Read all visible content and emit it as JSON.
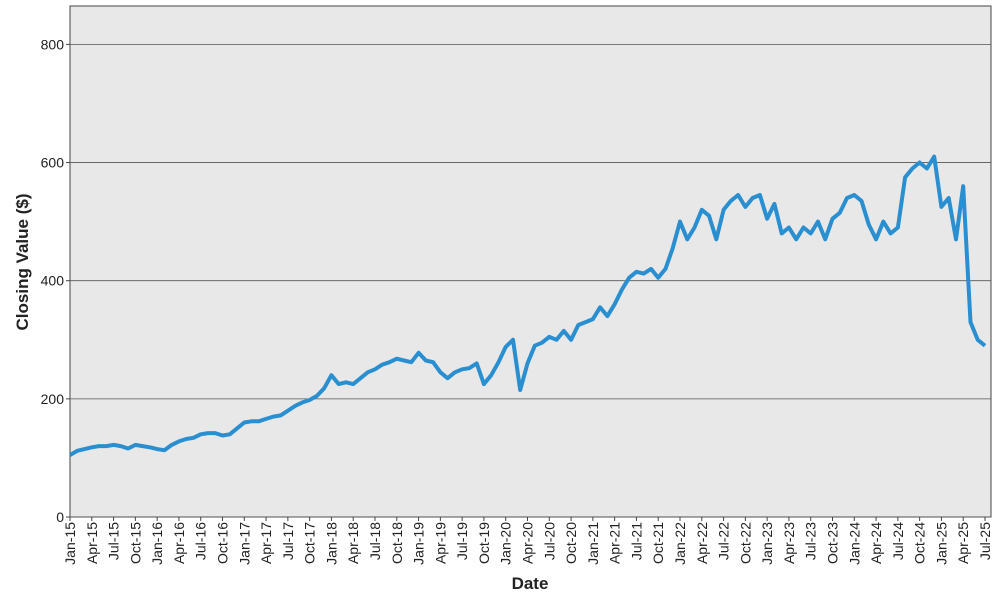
{
  "chart_data": {
    "type": "line",
    "y_label": "Closing Value ($)",
    "x_label": "Date",
    "color": "#2a8fd0",
    "grid": true,
    "ylim": [
      0,
      865
    ],
    "yticks": [
      0,
      200,
      400,
      600,
      800
    ],
    "xlim": [
      "2015-01",
      "2025-07"
    ],
    "xticks": [
      {
        "value": "2015-01",
        "label": "Jan-15"
      },
      {
        "value": "2015-04",
        "label": "Apr-15"
      },
      {
        "value": "2015-07",
        "label": "Jul-15"
      },
      {
        "value": "2015-10",
        "label": "Oct-15"
      },
      {
        "value": "2016-01",
        "label": "Jan-16"
      },
      {
        "value": "2016-04",
        "label": "Apr-16"
      },
      {
        "value": "2016-07",
        "label": "Jul-16"
      },
      {
        "value": "2016-10",
        "label": "Oct-16"
      },
      {
        "value": "2017-01",
        "label": "Jan-17"
      },
      {
        "value": "2017-04",
        "label": "Apr-17"
      },
      {
        "value": "2017-07",
        "label": "Jul-17"
      },
      {
        "value": "2017-10",
        "label": "Oct-17"
      },
      {
        "value": "2018-01",
        "label": "Jan-18"
      },
      {
        "value": "2018-04",
        "label": "Apr-18"
      },
      {
        "value": "2018-07",
        "label": "Jul-18"
      },
      {
        "value": "2018-10",
        "label": "Oct-18"
      },
      {
        "value": "2019-01",
        "label": "Jan-19"
      },
      {
        "value": "2019-04",
        "label": "Apr-19"
      },
      {
        "value": "2019-07",
        "label": "Jul-19"
      },
      {
        "value": "2019-10",
        "label": "Oct-19"
      },
      {
        "value": "2020-01",
        "label": "Jan-20"
      },
      {
        "value": "2020-04",
        "label": "Apr-20"
      },
      {
        "value": "2020-07",
        "label": "Jul-20"
      },
      {
        "value": "2020-10",
        "label": "Oct-20"
      },
      {
        "value": "2021-01",
        "label": "Jan-21"
      },
      {
        "value": "2021-04",
        "label": "Apr-21"
      },
      {
        "value": "2021-07",
        "label": "Jul-21"
      },
      {
        "value": "2021-10",
        "label": "Oct-21"
      },
      {
        "value": "2022-01",
        "label": "Jan-22"
      },
      {
        "value": "2022-04",
        "label": "Apr-22"
      },
      {
        "value": "2022-07",
        "label": "Jul-22"
      },
      {
        "value": "2022-10",
        "label": "Oct-22"
      },
      {
        "value": "2023-01",
        "label": "Jan-23"
      },
      {
        "value": "2023-04",
        "label": "Apr-23"
      },
      {
        "value": "2023-07",
        "label": "Jul-23"
      },
      {
        "value": "2023-10",
        "label": "Oct-23"
      },
      {
        "value": "2024-01",
        "label": "Jan-24"
      },
      {
        "value": "2024-04",
        "label": "Apr-24"
      },
      {
        "value": "2024-07",
        "label": "Jul-24"
      },
      {
        "value": "2024-10",
        "label": "Oct-24"
      },
      {
        "value": "2025-01",
        "label": "Jan-25"
      },
      {
        "value": "2025-04",
        "label": "Apr-25"
      },
      {
        "value": "2025-07",
        "label": "Jul-25"
      }
    ],
    "x": [
      "2015-01",
      "2015-02",
      "2015-03",
      "2015-04",
      "2015-05",
      "2015-06",
      "2015-07",
      "2015-08",
      "2015-09",
      "2015-10",
      "2015-11",
      "2015-12",
      "2016-01",
      "2016-02",
      "2016-03",
      "2016-04",
      "2016-05",
      "2016-06",
      "2016-07",
      "2016-08",
      "2016-09",
      "2016-10",
      "2016-11",
      "2016-12",
      "2017-01",
      "2017-02",
      "2017-03",
      "2017-04",
      "2017-05",
      "2017-06",
      "2017-07",
      "2017-08",
      "2017-09",
      "2017-10",
      "2017-11",
      "2017-12",
      "2018-01",
      "2018-02",
      "2018-03",
      "2018-04",
      "2018-05",
      "2018-06",
      "2018-07",
      "2018-08",
      "2018-09",
      "2018-10",
      "2018-11",
      "2018-12",
      "2019-01",
      "2019-02",
      "2019-03",
      "2019-04",
      "2019-05",
      "2019-06",
      "2019-07",
      "2019-08",
      "2019-09",
      "2019-10",
      "2019-11",
      "2019-12",
      "2020-01",
      "2020-02",
      "2020-03",
      "2020-04",
      "2020-05",
      "2020-06",
      "2020-07",
      "2020-08",
      "2020-09",
      "2020-10",
      "2020-11",
      "2020-12",
      "2021-01",
      "2021-02",
      "2021-03",
      "2021-04",
      "2021-05",
      "2021-06",
      "2021-07",
      "2021-08",
      "2021-09",
      "2021-10",
      "2021-11",
      "2021-12",
      "2022-01",
      "2022-02",
      "2022-03",
      "2022-04",
      "2022-05",
      "2022-06",
      "2022-07",
      "2022-08",
      "2022-09",
      "2022-10",
      "2022-11",
      "2022-12",
      "2023-01",
      "2023-02",
      "2023-03",
      "2023-04",
      "2023-05",
      "2023-06",
      "2023-07",
      "2023-08",
      "2023-09",
      "2023-10",
      "2023-11",
      "2023-12",
      "2024-01",
      "2024-02",
      "2024-03",
      "2024-04",
      "2024-05",
      "2024-06",
      "2024-07",
      "2024-08",
      "2024-09",
      "2024-10",
      "2024-11",
      "2024-12",
      "2025-01",
      "2025-02",
      "2025-03",
      "2025-04",
      "2025-05",
      "2025-06",
      "2025-07"
    ],
    "values": [
      105,
      112,
      115,
      118,
      120,
      120,
      122,
      120,
      116,
      122,
      120,
      118,
      115,
      113,
      122,
      128,
      132,
      134,
      140,
      142,
      142,
      138,
      140,
      150,
      160,
      162,
      162,
      166,
      170,
      172,
      180,
      188,
      194,
      198,
      205,
      218,
      240,
      225,
      228,
      225,
      235,
      245,
      250,
      258,
      262,
      268,
      265,
      262,
      278,
      265,
      262,
      245,
      235,
      245,
      250,
      252,
      260,
      225,
      240,
      262,
      288,
      300,
      215,
      260,
      290,
      295,
      305,
      300,
      315,
      300,
      325,
      330,
      335,
      355,
      340,
      360,
      385,
      405,
      415,
      412,
      420,
      405,
      420,
      455,
      500,
      470,
      490,
      520,
      510,
      470,
      520,
      535,
      545,
      525,
      540,
      545,
      505,
      530,
      480,
      490,
      470,
      490,
      480,
      500,
      470,
      505,
      515,
      540,
      545,
      535,
      495,
      470,
      500,
      480,
      490,
      575,
      590,
      600,
      590,
      610,
      525,
      540,
      470,
      560,
      330,
      300,
      290
    ]
  }
}
